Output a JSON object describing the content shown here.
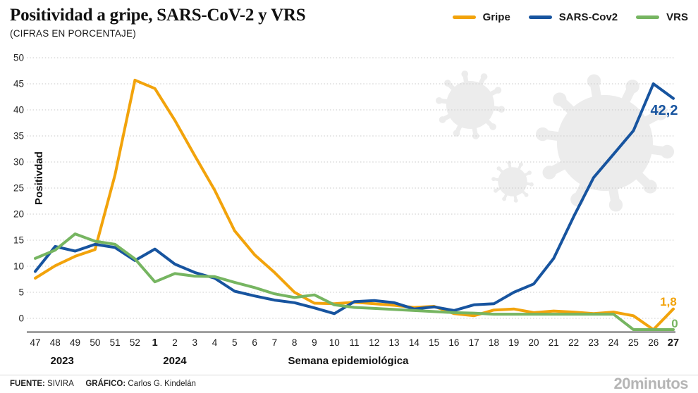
{
  "header": {
    "title": "Positividad a gripe, SARS-CoV-2 y VRS",
    "subtitle": "(CIFRAS EN PORCENTAJE)"
  },
  "legend": [
    {
      "label": "Gripe",
      "color": "#F2A30B"
    },
    {
      "label": "SARS-Cov2",
      "color": "#17549F"
    },
    {
      "label": "VRS",
      "color": "#76B561"
    }
  ],
  "chart_data": {
    "type": "line",
    "title": "Positividad a gripe, SARS-CoV-2 y VRS",
    "subtitle": "(CIFRAS EN PORCENTAJE)",
    "xlabel": "Semana epidemiológica",
    "ylabel": "Positivdad",
    "ylim": [
      0,
      50
    ],
    "ytick_step": 5,
    "grid": "horizontal-dotted",
    "legend_position": "top-right",
    "categories": [
      "47",
      "48",
      "49",
      "50",
      "51",
      "52",
      "1",
      "2",
      "3",
      "4",
      "5",
      "6",
      "7",
      "8",
      "9",
      "10",
      "11",
      "12",
      "13",
      "14",
      "15",
      "16",
      "17",
      "18",
      "19",
      "20",
      "21",
      "22",
      "23",
      "24",
      "25",
      "26",
      "27"
    ],
    "bold_category_indices": [
      6,
      32
    ],
    "year_labels": [
      {
        "text": "2023",
        "x_index": 1.35
      },
      {
        "text": "2024",
        "x_index": 7
      }
    ],
    "series": [
      {
        "name": "Gripe",
        "color": "#F2A30B",
        "end_label": "1,8",
        "values": [
          7.7,
          10.1,
          11.9,
          13.2,
          27.5,
          45.7,
          44.1,
          38.0,
          31.2,
          24.6,
          16.8,
          12.2,
          8.8,
          5.0,
          2.9,
          2.8,
          3.1,
          2.8,
          2.5,
          2.1,
          2.3,
          0.9,
          0.5,
          1.6,
          1.8,
          1.1,
          1.4,
          1.2,
          0.9,
          1.2,
          0.5,
          0.0,
          1.8
        ]
      },
      {
        "name": "SARS-Cov2",
        "color": "#17549F",
        "end_label": "42,2",
        "values": [
          9.0,
          13.8,
          12.9,
          14.2,
          13.6,
          11.1,
          13.3,
          10.4,
          8.8,
          7.7,
          5.2,
          4.3,
          3.5,
          3.0,
          2.0,
          0.9,
          3.2,
          3.4,
          3.0,
          1.8,
          2.2,
          1.5,
          2.6,
          2.8,
          5.0,
          6.6,
          11.5,
          19.5,
          27.0,
          31.5,
          36.0,
          45.0,
          42.2
        ]
      },
      {
        "name": "VRS",
        "color": "#76B561",
        "end_label": "0",
        "values": [
          11.5,
          13.1,
          16.2,
          14.8,
          14.2,
          11.4,
          7.0,
          8.6,
          8.1,
          8.0,
          6.9,
          5.9,
          4.7,
          4.0,
          4.5,
          2.6,
          2.1,
          1.9,
          1.7,
          1.5,
          1.3,
          1.1,
          1.0,
          0.8,
          0.8,
          0.8,
          0.8,
          0.8,
          0.8,
          0.8,
          0.0,
          0.0,
          0.0
        ]
      }
    ]
  },
  "footer": {
    "source_label": "FUENTE:",
    "source": "SIVIRA",
    "credit_label": "GRÁFICO:",
    "credit": "Carlos G. Kindelán",
    "brand": "20minutos"
  }
}
